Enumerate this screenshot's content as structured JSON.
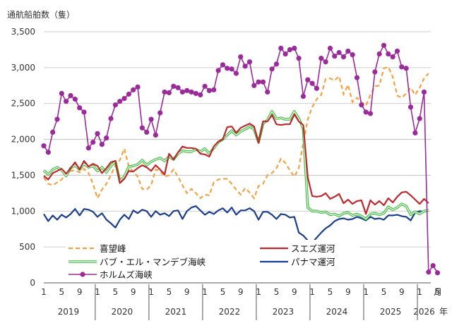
{
  "chart_data": {
    "type": "line",
    "title": "",
    "ylabel": "通航船舶数（隻）",
    "ylim": [
      0,
      3500
    ],
    "yticks": [
      0,
      500,
      1000,
      1500,
      2000,
      2500,
      3000,
      3500
    ],
    "ytick_labels": [
      "0",
      "500",
      "1,000",
      "1,500",
      "2,000",
      "2,500",
      "3,000",
      "3,500"
    ],
    "x_unit_month": "月",
    "x_unit_year": "年",
    "x_start": "2019-01",
    "x_month_ticks": [
      "1",
      "5",
      "9",
      "1",
      "5",
      "9",
      "1",
      "5",
      "9",
      "1",
      "5",
      "9",
      "1",
      "5",
      "9",
      "1",
      "5",
      "9",
      "1",
      "5",
      "9",
      "1",
      "5"
    ],
    "x_month_tick_index": [
      0,
      4,
      8,
      12,
      16,
      20,
      24,
      28,
      32,
      36,
      40,
      44,
      48,
      52,
      56,
      60,
      64,
      68,
      72,
      76,
      80,
      84,
      88
    ],
    "years": [
      "2019",
      "2020",
      "2021",
      "2022",
      "2023",
      "2024",
      "2025",
      "2026"
    ],
    "grid": "horizontal",
    "legend_position": "bottom-inside",
    "series": [
      {
        "name": "喜望峰",
        "color": "#f5a142",
        "style": "dashed",
        "values": [
          1470,
          1380,
          1360,
          1400,
          1440,
          1530,
          1560,
          1570,
          1540,
          1590,
          1530,
          1380,
          1180,
          1300,
          1380,
          1500,
          1640,
          1710,
          1870,
          1620,
          1550,
          1480,
          1310,
          1300,
          1360,
          1580,
          1560,
          1480,
          1500,
          1580,
          1480,
          1360,
          1250,
          1310,
          1250,
          1180,
          1230,
          1220,
          1400,
          1440,
          1450,
          1450,
          1380,
          1300,
          1230,
          1320,
          1260,
          1180,
          1350,
          1380,
          1500,
          1530,
          1600,
          1730,
          1670,
          1570,
          1480,
          1600,
          1950,
          2280,
          2450,
          2560,
          2620,
          2840,
          2850,
          2820,
          2880,
          2630,
          2760,
          2520,
          2580,
          2520,
          2470,
          2620,
          2740,
          2750,
          2990,
          3010,
          2870,
          2610,
          2580,
          2640,
          2720,
          2620,
          2720,
          2850,
          2920
        ]
      },
      {
        "name": "スエズ運河",
        "color": "#c0282d",
        "style": "solid",
        "values": [
          1490,
          1440,
          1530,
          1560,
          1590,
          1520,
          1600,
          1680,
          1580,
          1700,
          1620,
          1660,
          1630,
          1530,
          1600,
          1680,
          1700,
          1390,
          1450,
          1560,
          1550,
          1600,
          1640,
          1610,
          1560,
          1640,
          1580,
          1510,
          1800,
          1720,
          1820,
          1900,
          1880,
          1880,
          1870,
          1800,
          1790,
          1760,
          1900,
          1970,
          2000,
          2170,
          2180,
          2090,
          2160,
          2190,
          2220,
          2180,
          1950,
          2250,
          2250,
          2340,
          2210,
          2200,
          2210,
          2210,
          2350,
          2250,
          2200,
          1470,
          1210,
          1200,
          1210,
          1250,
          1170,
          1200,
          1240,
          1110,
          1160,
          1100,
          1140,
          1150,
          960,
          1150,
          1090,
          1140,
          1080,
          1180,
          1120,
          1200,
          1260,
          1270,
          1220,
          1160,
          1100,
          1170,
          1110
        ]
      },
      {
        "name": "バブ・エル・マンデブ海峡",
        "color": "#3cbf3c",
        "style": "double",
        "values": [
          1570,
          1510,
          1580,
          1610,
          1570,
          1490,
          1600,
          1640,
          1580,
          1660,
          1610,
          1630,
          1560,
          1610,
          1540,
          1630,
          1690,
          1420,
          1480,
          1620,
          1630,
          1650,
          1710,
          1640,
          1690,
          1720,
          1740,
          1700,
          1760,
          1720,
          1800,
          1840,
          1830,
          1830,
          1860,
          1830,
          1870,
          1800,
          1880,
          1960,
          2000,
          2060,
          2120,
          2060,
          2110,
          2140,
          2180,
          2140,
          1960,
          2220,
          2270,
          2390,
          2290,
          2300,
          2280,
          2280,
          2390,
          2290,
          2150,
          1050,
          1000,
          1000,
          980,
          990,
          950,
          960,
          930,
          970,
          980,
          940,
          960,
          930,
          890,
          960,
          970,
          950,
          970,
          1060,
          1020,
          1050,
          1100,
          1070,
          950,
          990,
          960,
          1000,
          1010
        ]
      },
      {
        "name": "パナマ運河",
        "color": "#1a3d8f",
        "style": "solid",
        "values": [
          960,
          860,
          940,
          880,
          950,
          910,
          960,
          1030,
          940,
          1030,
          1020,
          990,
          920,
          970,
          880,
          830,
          770,
          880,
          950,
          890,
          1010,
          970,
          1020,
          1000,
          920,
          1000,
          950,
          970,
          930,
          1000,
          1010,
          890,
          1000,
          1050,
          1070,
          1010,
          950,
          990,
          960,
          1010,
          1040,
          980,
          1050,
          950,
          1010,
          1010,
          1040,
          1000,
          880,
          990,
          990,
          950,
          890,
          960,
          950,
          910,
          920,
          700,
          660,
          590,
          560,
          630,
          700,
          760,
          800,
          860,
          890,
          900,
          880,
          890,
          920,
          900,
          870,
          920,
          890,
          900,
          880,
          940,
          940,
          950,
          930,
          920,
          870,
          980,
          1000,
          990,
          1010
        ]
      },
      {
        "name": "ホルムズ海峡",
        "color": "#9b2b9a",
        "style": "marker",
        "values": [
          1910,
          1820,
          2100,
          2280,
          2640,
          2530,
          2610,
          2560,
          2440,
          2380,
          1880,
          1960,
          2080,
          1930,
          2020,
          2290,
          2480,
          2530,
          2570,
          2630,
          2690,
          2730,
          2160,
          2100,
          2280,
          2060,
          2370,
          2660,
          2650,
          2740,
          2720,
          2660,
          2680,
          2660,
          2640,
          2620,
          2740,
          2680,
          2690,
          2960,
          3040,
          2990,
          2980,
          2920,
          3150,
          3020,
          3080,
          2750,
          2800,
          2800,
          2660,
          2980,
          3050,
          3270,
          3190,
          3250,
          3270,
          3130,
          2600,
          2830,
          2780,
          2710,
          3130,
          3080,
          3270,
          3160,
          3210,
          3150,
          3230,
          3180,
          2860,
          2480,
          2380,
          2360,
          2940,
          3190,
          3310,
          3190,
          3150,
          3230,
          3010,
          2990,
          2450,
          2090,
          2290,
          2660,
          150,
          240,
          140
        ]
      }
    ]
  }
}
